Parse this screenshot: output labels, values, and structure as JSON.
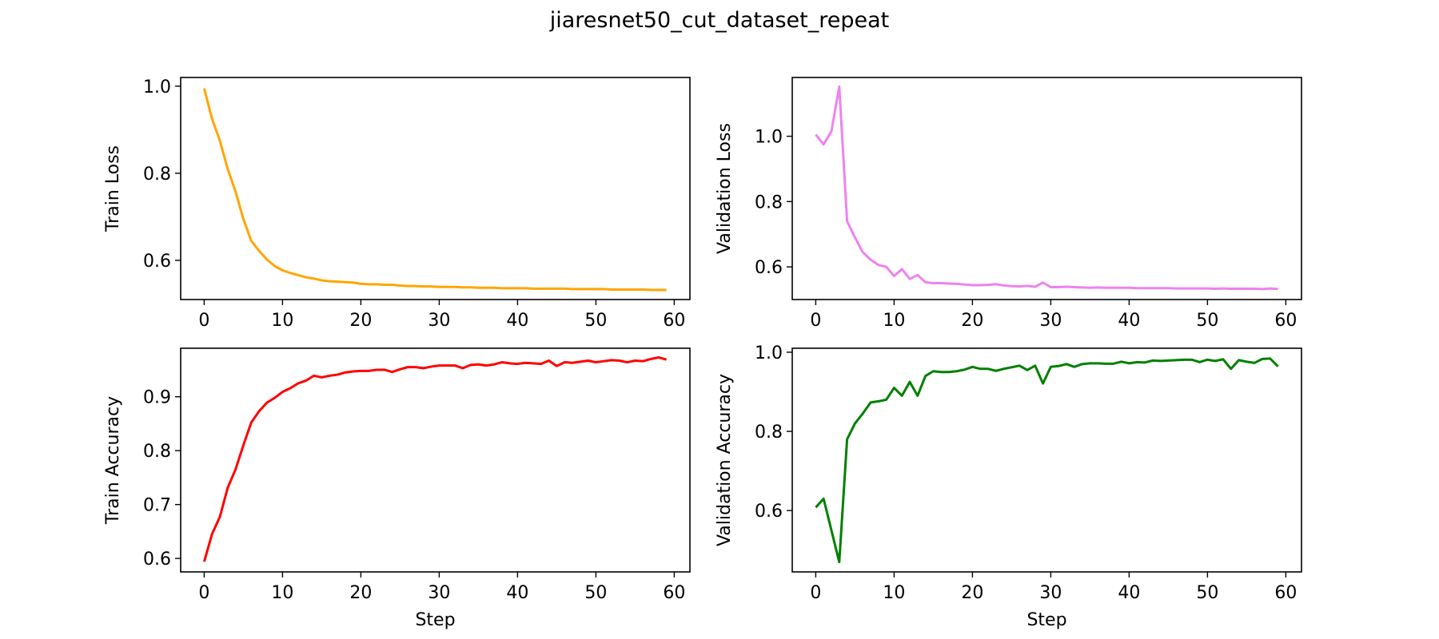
{
  "figure": {
    "title": "jiaresnet50_cut_dataset_repeat"
  },
  "chart_data": [
    {
      "type": "line",
      "id": "train-loss",
      "ylabel": "Train Loss",
      "xlabel": "",
      "xlim": [
        -3,
        62
      ],
      "ylim": [
        0.51,
        1.02
      ],
      "xticks": [
        0,
        10,
        20,
        30,
        40,
        50,
        60
      ],
      "yticks": [
        0.6,
        0.8,
        1.0
      ],
      "ytick_labels": [
        "0.6",
        "0.8",
        "1.0"
      ],
      "color": "#ffa500",
      "series": [
        {
          "x": [
            0,
            1,
            2,
            3,
            4,
            5,
            6,
            7,
            8,
            9,
            10,
            11,
            12,
            13,
            14,
            15,
            16,
            17,
            18,
            19,
            20,
            21,
            22,
            23,
            24,
            25,
            26,
            27,
            28,
            29,
            30,
            31,
            32,
            33,
            34,
            35,
            36,
            37,
            38,
            39,
            40,
            41,
            42,
            43,
            44,
            45,
            46,
            47,
            48,
            49,
            50,
            51,
            52,
            53,
            54,
            55,
            56,
            57,
            58,
            59
          ],
          "values": [
            0.995,
            0.925,
            0.875,
            0.81,
            0.758,
            0.695,
            0.645,
            0.622,
            0.602,
            0.587,
            0.577,
            0.571,
            0.566,
            0.561,
            0.558,
            0.554,
            0.552,
            0.551,
            0.55,
            0.549,
            0.546,
            0.545,
            0.545,
            0.544,
            0.544,
            0.542,
            0.541,
            0.541,
            0.54,
            0.54,
            0.539,
            0.539,
            0.539,
            0.538,
            0.538,
            0.537,
            0.537,
            0.537,
            0.536,
            0.536,
            0.536,
            0.536,
            0.535,
            0.535,
            0.535,
            0.535,
            0.535,
            0.534,
            0.534,
            0.534,
            0.534,
            0.534,
            0.533,
            0.533,
            0.533,
            0.533,
            0.533,
            0.532,
            0.532,
            0.532
          ]
        }
      ]
    },
    {
      "type": "line",
      "id": "validation-loss",
      "ylabel": "Validation Loss",
      "xlabel": "",
      "xlim": [
        -3,
        62
      ],
      "ylim": [
        0.5,
        1.18
      ],
      "xticks": [
        0,
        10,
        20,
        30,
        40,
        50,
        60
      ],
      "yticks": [
        0.6,
        0.8,
        1.0
      ],
      "ytick_labels": [
        "0.6",
        "0.8",
        "1.0"
      ],
      "color": "#ee82ee",
      "series": [
        {
          "x": [
            0,
            1,
            2,
            3,
            4,
            5,
            6,
            7,
            8,
            9,
            10,
            11,
            12,
            13,
            14,
            15,
            16,
            17,
            18,
            19,
            20,
            21,
            22,
            23,
            24,
            25,
            26,
            27,
            28,
            29,
            30,
            31,
            32,
            33,
            34,
            35,
            36,
            37,
            38,
            39,
            40,
            41,
            42,
            43,
            44,
            45,
            46,
            47,
            48,
            49,
            50,
            51,
            52,
            53,
            54,
            55,
            56,
            57,
            58,
            59
          ],
          "values": [
            1.005,
            0.975,
            1.015,
            1.152,
            0.74,
            0.69,
            0.645,
            0.622,
            0.606,
            0.6,
            0.572,
            0.593,
            0.563,
            0.575,
            0.553,
            0.55,
            0.55,
            0.549,
            0.548,
            0.546,
            0.544,
            0.544,
            0.545,
            0.547,
            0.543,
            0.541,
            0.54,
            0.542,
            0.539,
            0.552,
            0.538,
            0.538,
            0.539,
            0.538,
            0.537,
            0.536,
            0.537,
            0.536,
            0.536,
            0.536,
            0.536,
            0.535,
            0.535,
            0.535,
            0.535,
            0.535,
            0.534,
            0.534,
            0.534,
            0.534,
            0.534,
            0.533,
            0.534,
            0.533,
            0.533,
            0.533,
            0.533,
            0.532,
            0.534,
            0.532
          ]
        }
      ]
    },
    {
      "type": "line",
      "id": "train-accuracy",
      "ylabel": "Train Accuracy",
      "xlabel": "Step",
      "xlim": [
        -3,
        62
      ],
      "ylim": [
        0.575,
        0.99
      ],
      "xticks": [
        0,
        10,
        20,
        30,
        40,
        50,
        60
      ],
      "yticks": [
        0.6,
        0.7,
        0.8,
        0.9
      ],
      "ytick_labels": [
        "0.6",
        "0.7",
        "0.8",
        "0.9"
      ],
      "color": "#ff0000",
      "series": [
        {
          "x": [
            0,
            1,
            2,
            3,
            4,
            5,
            6,
            7,
            8,
            9,
            10,
            11,
            12,
            13,
            14,
            15,
            16,
            17,
            18,
            19,
            20,
            21,
            22,
            23,
            24,
            25,
            26,
            27,
            28,
            29,
            30,
            31,
            32,
            33,
            34,
            35,
            36,
            37,
            38,
            39,
            40,
            41,
            42,
            43,
            44,
            45,
            46,
            47,
            48,
            49,
            50,
            51,
            52,
            53,
            54,
            55,
            56,
            57,
            58,
            59
          ],
          "values": [
            0.594,
            0.645,
            0.677,
            0.731,
            0.765,
            0.81,
            0.852,
            0.873,
            0.889,
            0.898,
            0.909,
            0.916,
            0.925,
            0.93,
            0.939,
            0.936,
            0.939,
            0.941,
            0.945,
            0.947,
            0.948,
            0.948,
            0.95,
            0.95,
            0.946,
            0.951,
            0.955,
            0.955,
            0.953,
            0.956,
            0.958,
            0.958,
            0.958,
            0.953,
            0.959,
            0.96,
            0.958,
            0.96,
            0.964,
            0.962,
            0.961,
            0.963,
            0.962,
            0.961,
            0.967,
            0.957,
            0.964,
            0.963,
            0.965,
            0.967,
            0.964,
            0.966,
            0.968,
            0.967,
            0.964,
            0.967,
            0.966,
            0.97,
            0.973,
            0.969
          ]
        }
      ]
    },
    {
      "type": "line",
      "id": "validation-accuracy",
      "ylabel": "Validation Accuracy",
      "xlabel": "Step",
      "xlim": [
        -3,
        62
      ],
      "ylim": [
        0.445,
        1.01
      ],
      "xticks": [
        0,
        10,
        20,
        30,
        40,
        50,
        60
      ],
      "yticks": [
        0.6,
        0.8,
        1.0
      ],
      "ytick_labels": [
        "0.6",
        "0.8",
        "1.0"
      ],
      "color": "#008000",
      "series": [
        {
          "x": [
            0,
            1,
            2,
            3,
            4,
            5,
            6,
            7,
            8,
            9,
            10,
            11,
            12,
            13,
            14,
            15,
            16,
            17,
            18,
            19,
            20,
            21,
            22,
            23,
            24,
            25,
            26,
            27,
            28,
            29,
            30,
            31,
            32,
            33,
            34,
            35,
            36,
            37,
            38,
            39,
            40,
            41,
            42,
            43,
            44,
            45,
            46,
            47,
            48,
            49,
            50,
            51,
            52,
            53,
            54,
            55,
            56,
            57,
            58,
            59
          ],
          "values": [
            0.608,
            0.63,
            0.55,
            0.47,
            0.78,
            0.82,
            0.845,
            0.873,
            0.876,
            0.88,
            0.91,
            0.89,
            0.925,
            0.89,
            0.94,
            0.952,
            0.95,
            0.95,
            0.952,
            0.956,
            0.963,
            0.958,
            0.958,
            0.953,
            0.958,
            0.962,
            0.966,
            0.955,
            0.966,
            0.921,
            0.963,
            0.965,
            0.97,
            0.963,
            0.97,
            0.972,
            0.972,
            0.971,
            0.971,
            0.976,
            0.972,
            0.975,
            0.974,
            0.979,
            0.978,
            0.979,
            0.98,
            0.981,
            0.981,
            0.975,
            0.981,
            0.978,
            0.982,
            0.958,
            0.98,
            0.976,
            0.973,
            0.983,
            0.984,
            0.964
          ]
        }
      ]
    }
  ]
}
